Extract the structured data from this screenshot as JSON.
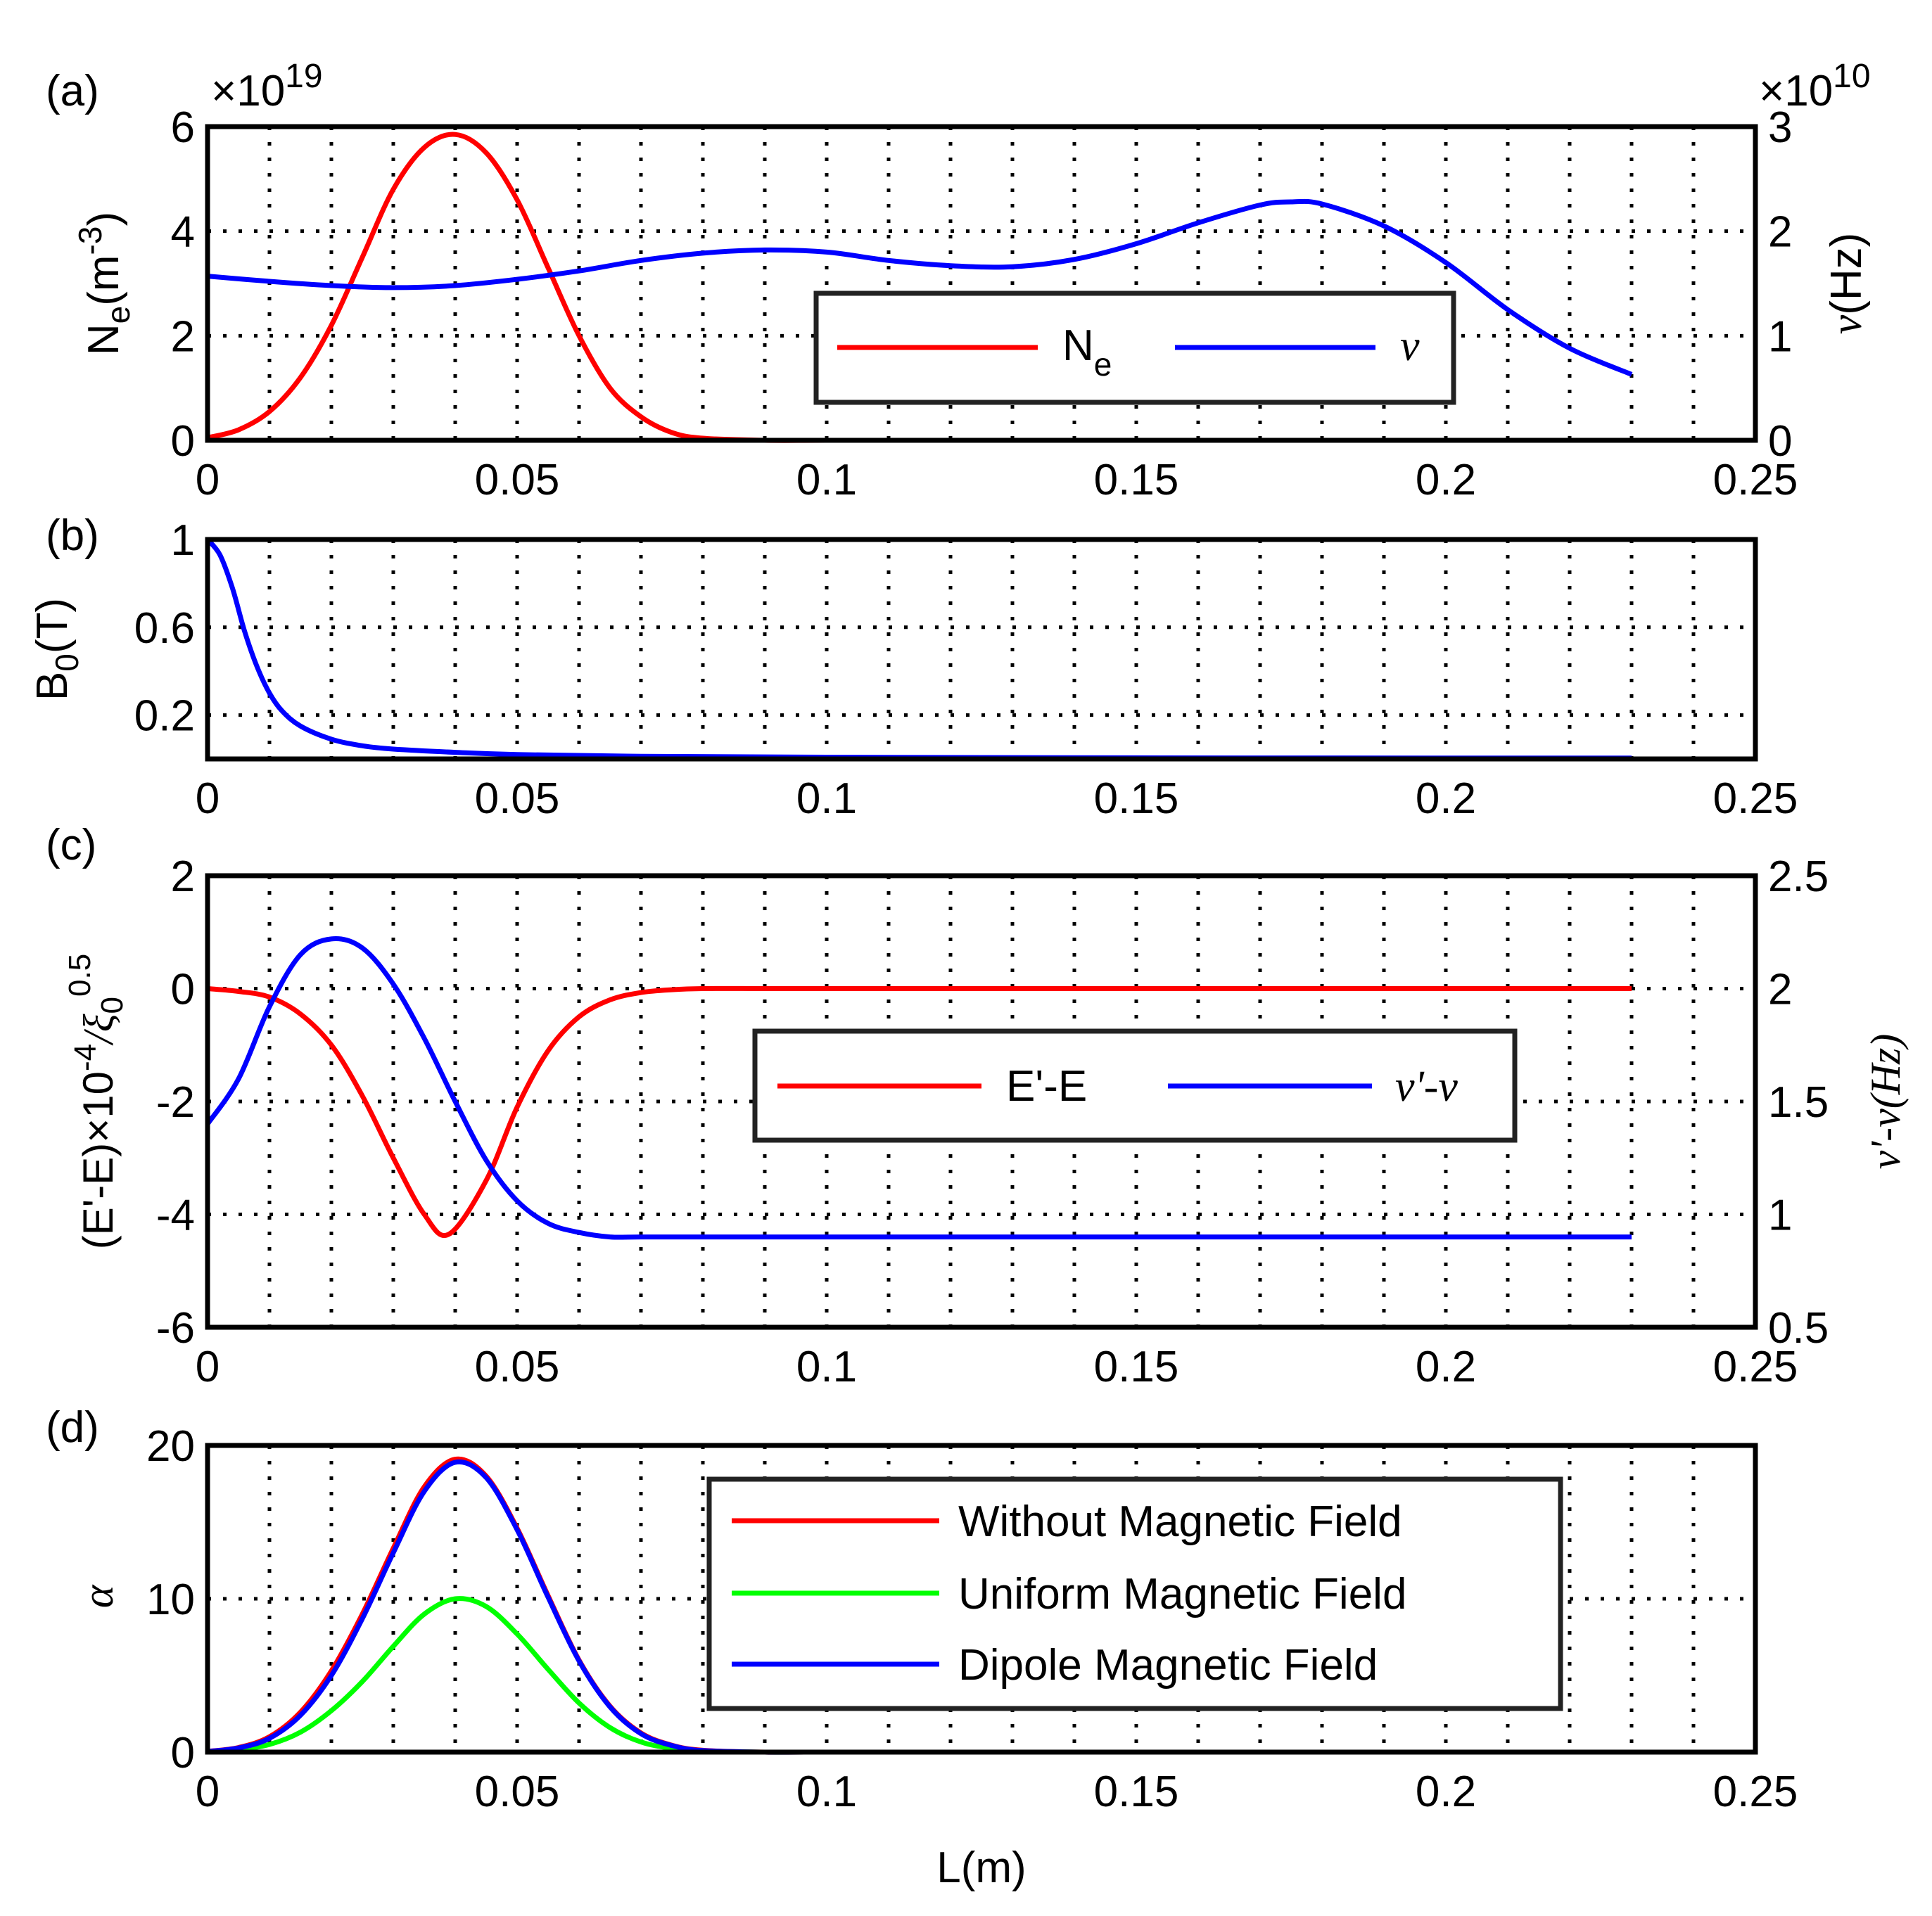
{
  "chart_data": [
    {
      "panel": "(a)",
      "type": "line",
      "xlim": [
        0,
        0.25
      ],
      "x_ticks": [
        "0",
        "0.05",
        "0.1",
        "0.15",
        "0.2",
        "0.25"
      ],
      "y_left": {
        "label_main": "N",
        "label_sub": "e",
        "label_unit": "(m",
        "label_exp": "-3",
        "label_close": ")",
        "ylim": [
          0,
          6
        ],
        "ticks": [
          "0",
          "2",
          "4",
          "6"
        ],
        "multiplier_base": "×10",
        "multiplier_exp": "19"
      },
      "y_right": {
        "label_symbol": "ν",
        "label_unit": "(Hz)",
        "ylim": [
          0,
          3
        ],
        "ticks": [
          "0",
          "1",
          "2",
          "3"
        ],
        "multiplier_base": "×10",
        "multiplier_exp": "10"
      },
      "grid": true,
      "legend": {
        "placement": "center-right",
        "entries": [
          {
            "main": "N",
            "sub": "e"
          },
          {
            "symbol": "ν"
          }
        ]
      },
      "series": [
        {
          "name": "Ne",
          "axis": "left",
          "color": "#ff0000",
          "x": [
            0,
            0.005,
            0.01,
            0.015,
            0.02,
            0.025,
            0.03,
            0.035,
            0.04,
            0.045,
            0.05,
            0.055,
            0.06,
            0.065,
            0.07,
            0.075,
            0.08,
            0.09,
            0.1,
            0.12,
            0.14,
            0.16,
            0.18,
            0.2,
            0.22,
            0.23
          ],
          "y": [
            0.05,
            0.2,
            0.55,
            1.2,
            2.2,
            3.5,
            4.8,
            5.6,
            5.85,
            5.5,
            4.6,
            3.3,
            2.0,
            1.0,
            0.45,
            0.15,
            0.04,
            0,
            0,
            0,
            0,
            0,
            0,
            0,
            0,
            0
          ]
        },
        {
          "name": "ν",
          "axis": "right",
          "color": "#0000ff",
          "x": [
            0,
            0.01,
            0.02,
            0.03,
            0.04,
            0.05,
            0.06,
            0.07,
            0.08,
            0.09,
            0.1,
            0.11,
            0.12,
            0.13,
            0.14,
            0.15,
            0.16,
            0.17,
            0.175,
            0.18,
            0.19,
            0.2,
            0.21,
            0.22,
            0.23
          ],
          "y": [
            1.57,
            1.52,
            1.48,
            1.46,
            1.48,
            1.54,
            1.62,
            1.72,
            1.79,
            1.82,
            1.8,
            1.72,
            1.67,
            1.66,
            1.73,
            1.88,
            2.08,
            2.25,
            2.28,
            2.26,
            2.05,
            1.7,
            1.25,
            0.88,
            0.63
          ]
        }
      ]
    },
    {
      "panel": "(b)",
      "type": "line",
      "xlim": [
        0,
        0.25
      ],
      "x_ticks": [
        "0",
        "0.05",
        "0.1",
        "0.15",
        "0.2",
        "0.25"
      ],
      "y_left": {
        "label_main": "B",
        "label_sub": "0",
        "label_unit": "(T)",
        "ylim": [
          0,
          1
        ],
        "ticks": [
          "0.2",
          "0.6",
          "1"
        ]
      },
      "grid": true,
      "series": [
        {
          "name": "B0",
          "axis": "left",
          "color": "#0000ff",
          "x": [
            0,
            0.002,
            0.004,
            0.006,
            0.008,
            0.01,
            0.012,
            0.015,
            0.02,
            0.025,
            0.03,
            0.04,
            0.05,
            0.07,
            0.1,
            0.15,
            0.2,
            0.23
          ],
          "y": [
            1.0,
            0.93,
            0.78,
            0.58,
            0.42,
            0.3,
            0.22,
            0.15,
            0.09,
            0.06,
            0.045,
            0.03,
            0.02,
            0.012,
            0.008,
            0.005,
            0.004,
            0.004
          ]
        }
      ]
    },
    {
      "panel": "(c)",
      "type": "line",
      "xlim": [
        0,
        0.25
      ],
      "x_ticks": [
        "0",
        "0.05",
        "0.1",
        "0.15",
        "0.2",
        "0.25"
      ],
      "y_left": {
        "label": "(E'-E)×10",
        "label_exp": "-4",
        "label_tail": "/ξ",
        "label_tail_sub": "0",
        "label_tail_exp": "0.5",
        "ylim": [
          -6,
          2
        ],
        "ticks": [
          "-6",
          "-4",
          "-2",
          "0",
          "2"
        ]
      },
      "y_right": {
        "label": "ν'-ν(Hz)",
        "ylim": [
          0.5,
          2.5
        ],
        "ticks": [
          "0.5",
          "1",
          "1.5",
          "2",
          "2.5"
        ]
      },
      "grid": true,
      "legend": {
        "placement": "center-right",
        "entries": [
          "E'-E",
          "ν'-ν"
        ]
      },
      "series": [
        {
          "name": "E'-E",
          "axis": "left",
          "color": "#ff0000",
          "x": [
            0,
            0.005,
            0.01,
            0.015,
            0.02,
            0.025,
            0.03,
            0.035,
            0.039,
            0.045,
            0.05,
            0.055,
            0.06,
            0.065,
            0.07,
            0.075,
            0.08,
            0.09,
            0.1,
            0.15,
            0.2,
            0.23
          ],
          "y": [
            0,
            -0.05,
            -0.15,
            -0.45,
            -1.0,
            -1.9,
            -3.0,
            -4.0,
            -4.35,
            -3.4,
            -2.1,
            -1.1,
            -0.5,
            -0.2,
            -0.07,
            -0.02,
            0,
            0,
            0,
            0,
            0,
            0
          ]
        },
        {
          "name": "ν'-ν",
          "axis": "right",
          "color": "#0000ff",
          "x": [
            0,
            0.005,
            0.01,
            0.015,
            0.02,
            0.025,
            0.03,
            0.035,
            0.04,
            0.045,
            0.05,
            0.055,
            0.06,
            0.065,
            0.07,
            0.08,
            0.1,
            0.15,
            0.2,
            0.23
          ],
          "y": [
            1.4,
            1.6,
            1.92,
            2.15,
            2.22,
            2.18,
            2.02,
            1.78,
            1.5,
            1.24,
            1.06,
            0.96,
            0.92,
            0.9,
            0.9,
            0.9,
            0.9,
            0.9,
            0.9,
            0.9
          ]
        }
      ]
    },
    {
      "panel": "(d)",
      "type": "line",
      "xlim": [
        0,
        0.25
      ],
      "x_ticks": [
        "0",
        "0.05",
        "0.1",
        "0.15",
        "0.2",
        "0.25"
      ],
      "xlabel": "L(m)",
      "y_left": {
        "label": "α",
        "ylim": [
          0,
          20
        ],
        "ticks": [
          "0",
          "10",
          "20"
        ]
      },
      "grid": true,
      "legend": {
        "placement": "top-right",
        "entries": [
          "Without Magnetic Field",
          "Uniform Magnetic Field",
          "Dipole Magnetic Field"
        ]
      },
      "series": [
        {
          "name": "Without Magnetic Field",
          "axis": "left",
          "color": "#ff0000",
          "x": [
            0,
            0.005,
            0.01,
            0.015,
            0.02,
            0.025,
            0.03,
            0.035,
            0.04,
            0.045,
            0.05,
            0.055,
            0.06,
            0.065,
            0.07,
            0.075,
            0.08,
            0.09,
            0.1,
            0.15,
            0.2,
            0.23
          ],
          "y": [
            0.05,
            0.3,
            1.0,
            2.6,
            5.3,
            9.0,
            13.3,
            17.3,
            19.1,
            18.0,
            14.6,
            10.2,
            6.0,
            3.0,
            1.25,
            0.45,
            0.12,
            0,
            0,
            0,
            0,
            0
          ]
        },
        {
          "name": "Uniform Magnetic Field",
          "axis": "left",
          "color": "#00ff00",
          "x": [
            0,
            0.005,
            0.01,
            0.015,
            0.02,
            0.025,
            0.03,
            0.035,
            0.04,
            0.045,
            0.05,
            0.055,
            0.06,
            0.065,
            0.07,
            0.075,
            0.08,
            0.09,
            0.1,
            0.15,
            0.2,
            0.23
          ],
          "y": [
            0.03,
            0.16,
            0.5,
            1.3,
            2.7,
            4.6,
            6.9,
            9.0,
            10.0,
            9.5,
            7.7,
            5.4,
            3.2,
            1.6,
            0.66,
            0.24,
            0.06,
            0,
            0,
            0,
            0,
            0
          ]
        },
        {
          "name": "Dipole Magnetic Field",
          "axis": "left",
          "color": "#0000ff",
          "x": [
            0,
            0.005,
            0.01,
            0.015,
            0.02,
            0.025,
            0.03,
            0.035,
            0.04,
            0.045,
            0.05,
            0.055,
            0.06,
            0.065,
            0.07,
            0.075,
            0.08,
            0.09,
            0.1,
            0.15,
            0.2,
            0.23
          ],
          "y": [
            0.04,
            0.27,
            0.9,
            2.4,
            5.0,
            8.7,
            13.0,
            17.0,
            18.9,
            17.9,
            14.5,
            10.1,
            5.95,
            2.95,
            1.2,
            0.43,
            0.1,
            0,
            0,
            0,
            0,
            0
          ]
        }
      ]
    }
  ],
  "labels": {
    "a": "(a)",
    "b": "(b)",
    "c": "(c)",
    "d": "(d)"
  }
}
